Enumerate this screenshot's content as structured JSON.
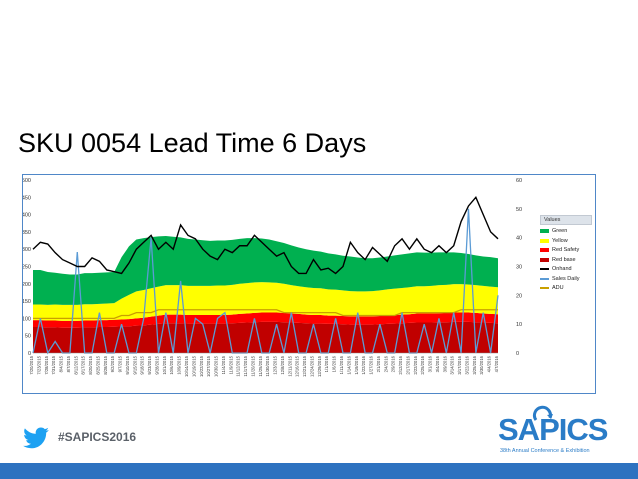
{
  "slide": {
    "title": "SKU 0054 Lead Time 6 Days",
    "hashtag": "#SAPICS2016",
    "logo_text": "SAPICS",
    "logo_subtitle": "38th Annual Conference & Exhibition"
  },
  "chart_data": {
    "type": "area",
    "title": "",
    "xlabel": "",
    "ylabel": "",
    "ylim": [
      0,
      500
    ],
    "y2lim": [
      0,
      60
    ],
    "yticks": [
      0,
      50,
      100,
      150,
      200,
      250,
      300,
      350,
      400,
      450,
      500
    ],
    "y2ticks": [
      0,
      10,
      20,
      30,
      40,
      50,
      60
    ],
    "grid": false,
    "legend_placement": "right",
    "legend_title": "Values",
    "categories": [
      "7/20/2015",
      "7/23/2015",
      "7/28/2015",
      "7/31/2015",
      "8/4/2015",
      "8/7/2015",
      "8/12/2015",
      "8/17/2015",
      "8/20/2015",
      "8/25/2015",
      "8/28/2015",
      "9/2/2015",
      "9/7/2015",
      "9/10/2015",
      "9/15/2015",
      "9/18/2015",
      "9/23/2015",
      "9/28/2015",
      "10/1/2015",
      "10/6/2015",
      "10/9/2015",
      "10/14/2015",
      "10/19/2015",
      "10/22/2015",
      "10/27/2015",
      "10/30/2015",
      "11/4/2015",
      "11/9/2015",
      "11/12/2015",
      "11/17/2015",
      "11/20/2015",
      "11/25/2015",
      "11/30/2015",
      "12/3/2015",
      "12/8/2015",
      "12/11/2015",
      "12/16/2015",
      "12/21/2015",
      "12/24/2015",
      "12/29/2015",
      "1/1/2016",
      "1/6/2016",
      "1/11/2016",
      "1/14/2016",
      "1/19/2016",
      "1/22/2016",
      "1/27/2016",
      "2/1/2016",
      "2/4/2016",
      "2/9/2016",
      "2/12/2016",
      "2/17/2016",
      "2/22/2016",
      "2/25/2016",
      "3/1/2016",
      "3/4/2016",
      "3/9/2016",
      "3/14/2016",
      "3/17/2016",
      "3/22/2016",
      "3/25/2016",
      "3/30/2016",
      "4/4/2016",
      "4/7/2016"
    ],
    "series": [
      {
        "name": "Red base",
        "color": "#c00000",
        "axis": "left",
        "values": [
          75,
          75,
          74,
          74,
          73,
          73,
          73,
          74,
          74,
          75,
          75,
          76,
          77,
          77,
          79,
          80,
          82,
          84,
          86,
          86,
          86,
          85,
          85,
          85,
          85,
          85,
          85,
          86,
          87,
          88,
          89,
          90,
          90,
          90,
          89,
          88,
          87,
          86,
          85,
          85,
          84,
          84,
          83,
          82,
          82,
          82,
          82,
          83,
          84,
          85,
          86,
          87,
          88,
          88,
          88,
          89,
          89,
          90,
          90,
          90,
          89,
          88,
          87,
          86
        ]
      },
      {
        "name": "Red Safety",
        "color": "#ff0000",
        "axis": "left",
        "values": [
          20,
          20,
          20,
          20,
          20,
          20,
          20,
          20,
          20,
          20,
          20,
          20,
          20,
          21,
          21,
          22,
          23,
          24,
          25,
          25,
          25,
          25,
          25,
          25,
          25,
          25,
          25,
          25,
          26,
          26,
          27,
          27,
          27,
          27,
          27,
          26,
          26,
          25,
          25,
          25,
          24,
          24,
          24,
          24,
          24,
          24,
          24,
          24,
          25,
          25,
          25,
          25,
          26,
          26,
          26,
          26,
          27,
          27,
          27,
          27,
          27,
          26,
          26,
          26
        ]
      },
      {
        "name": "Yellow",
        "color": "#ffff00",
        "axis": "left",
        "values": [
          45,
          45,
          45,
          46,
          46,
          46,
          46,
          47,
          47,
          47,
          48,
          48,
          60,
          70,
          78,
          80,
          82,
          84,
          85,
          85,
          85,
          84,
          84,
          84,
          84,
          85,
          85,
          86,
          87,
          88,
          88,
          88,
          87,
          86,
          84,
          82,
          80,
          79,
          78,
          77,
          76,
          75,
          74,
          73,
          72,
          72,
          73,
          74,
          75,
          76,
          77,
          78,
          79,
          79,
          80,
          81,
          81,
          82,
          82,
          81,
          80,
          80,
          79,
          78
        ]
      },
      {
        "name": "Green",
        "color": "#00b050",
        "axis": "left",
        "values": [
          100,
          100,
          95,
          92,
          90,
          88,
          88,
          90,
          90,
          90,
          90,
          90,
          120,
          140,
          150,
          150,
          148,
          145,
          142,
          140,
          138,
          136,
          134,
          132,
          130,
          130,
          130,
          130,
          130,
          130,
          128,
          126,
          124,
          120,
          118,
          115,
          112,
          110,
          108,
          106,
          104,
          102,
          100,
          100,
          98,
          96,
          95,
          95,
          95,
          96,
          97,
          98,
          98,
          97,
          96,
          95,
          94,
          92,
          90,
          88,
          86,
          85,
          85,
          84
        ]
      },
      {
        "name": "Onhand",
        "color": "#000000",
        "axis": "left",
        "values": [
          300,
          320,
          315,
          290,
          270,
          260,
          250,
          250,
          275,
          265,
          240,
          235,
          230,
          260,
          300,
          320,
          340,
          300,
          320,
          300,
          370,
          340,
          330,
          300,
          280,
          270,
          300,
          290,
          310,
          310,
          340,
          320,
          300,
          280,
          290,
          250,
          230,
          230,
          270,
          240,
          245,
          230,
          250,
          320,
          290,
          270,
          305,
          285,
          265,
          310,
          330,
          300,
          330,
          300,
          290,
          310,
          290,
          310,
          380,
          425,
          450,
          400,
          350,
          330
        ]
      },
      {
        "name": "Sales Daily",
        "color": "#5b9bd5",
        "axis": "right",
        "values": [
          0,
          12,
          0,
          4,
          0,
          0,
          35,
          0,
          0,
          14,
          0,
          0,
          10,
          0,
          0,
          12,
          40,
          0,
          14,
          0,
          25,
          0,
          12,
          10,
          0,
          12,
          14,
          0,
          0,
          0,
          12,
          0,
          0,
          10,
          0,
          14,
          0,
          0,
          10,
          0,
          0,
          12,
          0,
          0,
          14,
          0,
          0,
          10,
          0,
          0,
          14,
          0,
          0,
          10,
          0,
          12,
          0,
          14,
          0,
          50,
          0,
          14,
          0,
          20
        ]
      },
      {
        "name": "ADU",
        "color": "#c9a000",
        "axis": "right",
        "values": [
          12,
          12,
          12,
          12,
          12,
          12,
          12,
          12,
          12,
          12,
          12,
          12,
          13,
          13,
          14,
          14,
          14,
          15,
          15,
          15,
          15,
          15,
          15,
          15,
          15,
          15,
          15,
          15,
          15,
          15,
          15,
          15,
          15,
          15,
          14,
          14,
          14,
          14,
          14,
          14,
          14,
          14,
          13,
          13,
          13,
          13,
          13,
          13,
          13,
          13,
          14,
          14,
          14,
          14,
          14,
          14,
          14,
          14,
          15,
          15,
          15,
          15,
          15,
          15
        ]
      }
    ]
  }
}
